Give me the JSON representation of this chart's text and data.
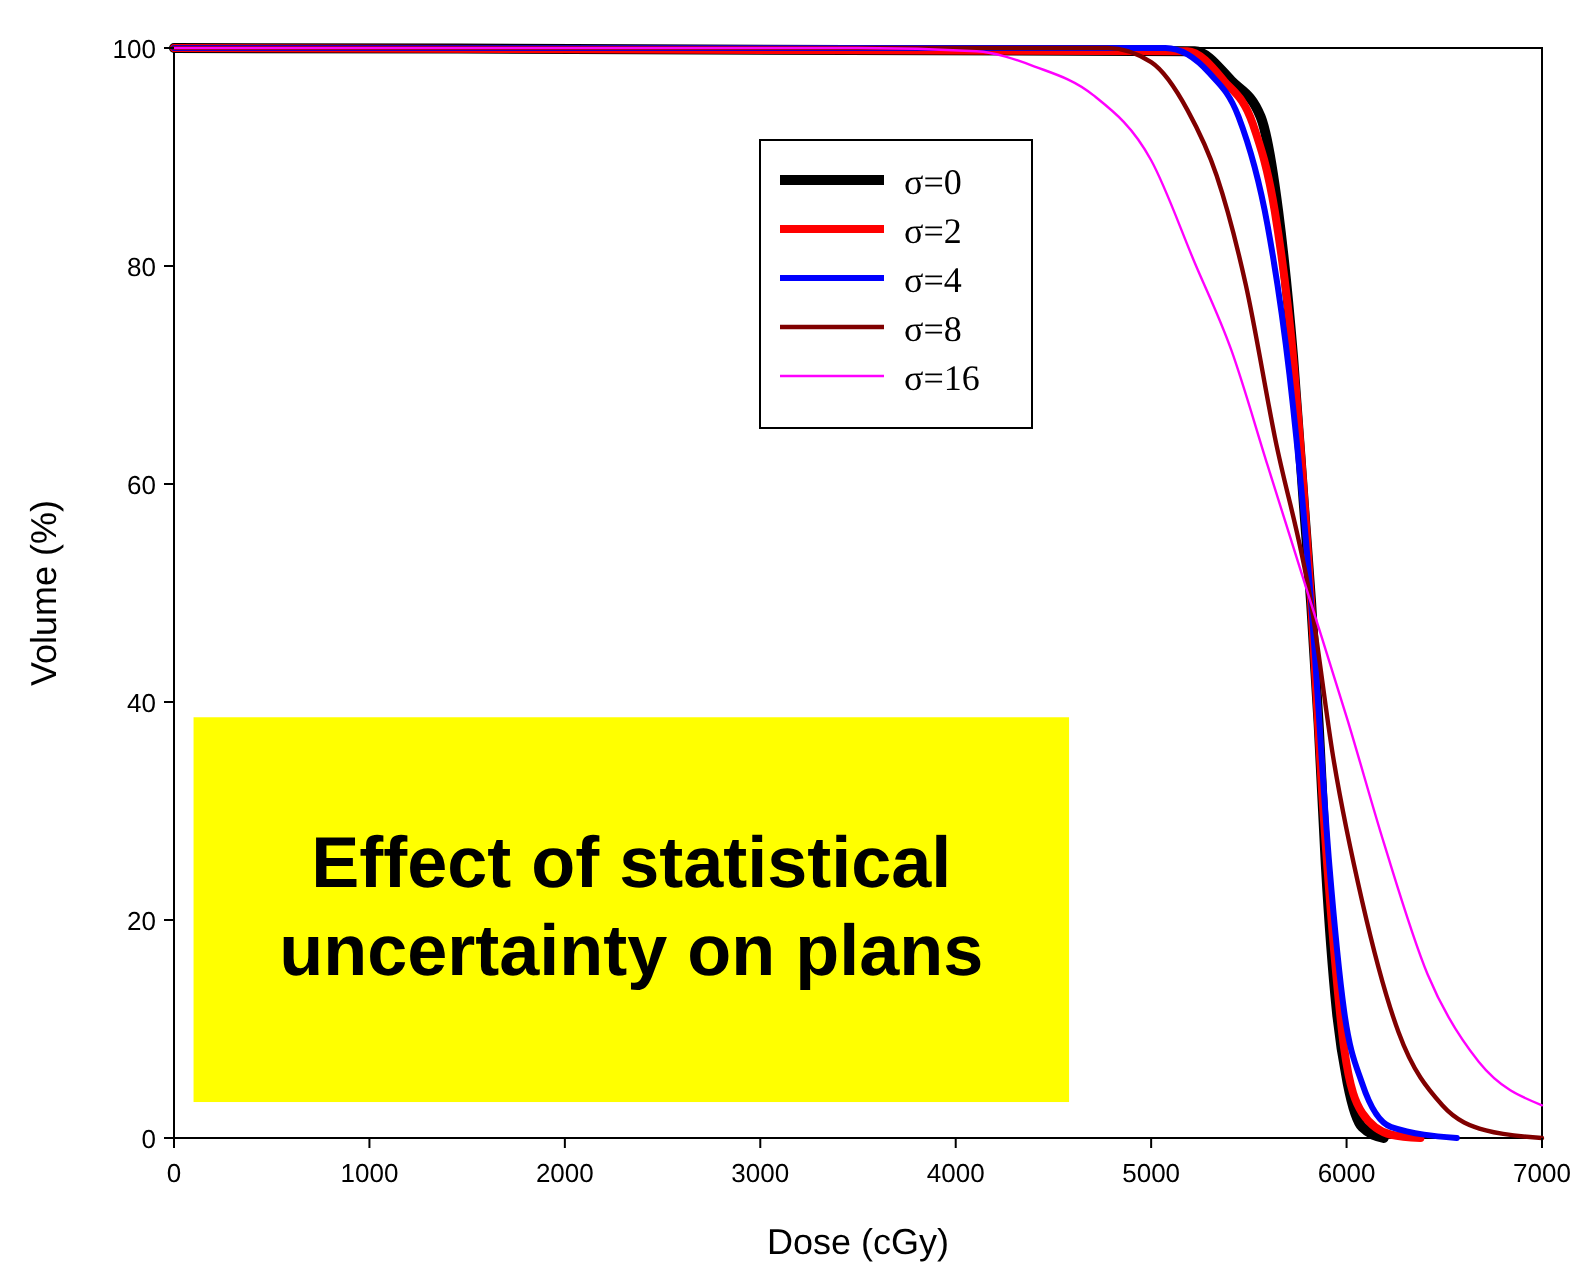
{
  "chart_data": {
    "type": "line",
    "xlabel": "Dose (cGy)",
    "ylabel": "Volume (%)",
    "xlim": [
      0,
      7000
    ],
    "ylim": [
      0,
      100
    ],
    "xticks": [
      0,
      1000,
      2000,
      3000,
      4000,
      5000,
      6000,
      7000
    ],
    "yticks": [
      0,
      20,
      40,
      60,
      80,
      100
    ],
    "grid": false,
    "legend": "top",
    "marker": "none",
    "line_style": "solid",
    "annotations": [
      "Effect of statistical uncertainty on plans"
    ],
    "series": [
      {
        "name": "σ=0",
        "color": "#000000",
        "x": [
          0,
          5223,
          5410,
          5560,
          5650,
          5726,
          5782,
          5819,
          5857,
          5894,
          5950,
          6006,
          6080,
          6190
        ],
        "values": [
          100,
          99.7,
          97,
          93.7,
          85,
          71.7,
          58,
          49,
          38,
          25,
          11.7,
          5,
          1,
          0
        ]
      },
      {
        "name": "σ=2",
        "color": "#ff0000",
        "x": [
          0,
          5186,
          5372,
          5521,
          5633,
          5726,
          5819,
          5875,
          5931,
          5987,
          6080,
          6229,
          6378
        ],
        "values": [
          100,
          99.7,
          97,
          93,
          85,
          71.7,
          49,
          31.7,
          18.3,
          8.3,
          2.3,
          0.3,
          0
        ]
      },
      {
        "name": "σ=4",
        "color": "#0000ff",
        "x": [
          0,
          5074,
          5298,
          5447,
          5596,
          5708,
          5819,
          5912,
          5987,
          6080,
          6229,
          6564
        ],
        "values": [
          100,
          100,
          97.7,
          93.7,
          83.7,
          70,
          49,
          25,
          11.7,
          5,
          1,
          0
        ]
      },
      {
        "name": "σ=8",
        "color": "#800000",
        "x": [
          0,
          4777,
          5000,
          5186,
          5335,
          5484,
          5633,
          5819,
          5931,
          6080,
          6266,
          6490,
          6713,
          7000
        ],
        "values": [
          100,
          100,
          98.7,
          94.3,
          88.3,
          78.3,
          64.3,
          49,
          35,
          21.7,
          9.7,
          3,
          0.7,
          0
        ]
      },
      {
        "name": "σ=16",
        "color": "#ff00ff",
        "x": [
          0,
          3500,
          4106,
          4404,
          4702,
          5000,
          5223,
          5410,
          5596,
          5819,
          6006,
          6192,
          6415,
          6676,
          7000
        ],
        "values": [
          100,
          100,
          99.7,
          98.3,
          95.7,
          89.7,
          80.3,
          72.3,
          61.7,
          49,
          38.3,
          27,
          15,
          7,
          3
        ]
      }
    ]
  }
}
